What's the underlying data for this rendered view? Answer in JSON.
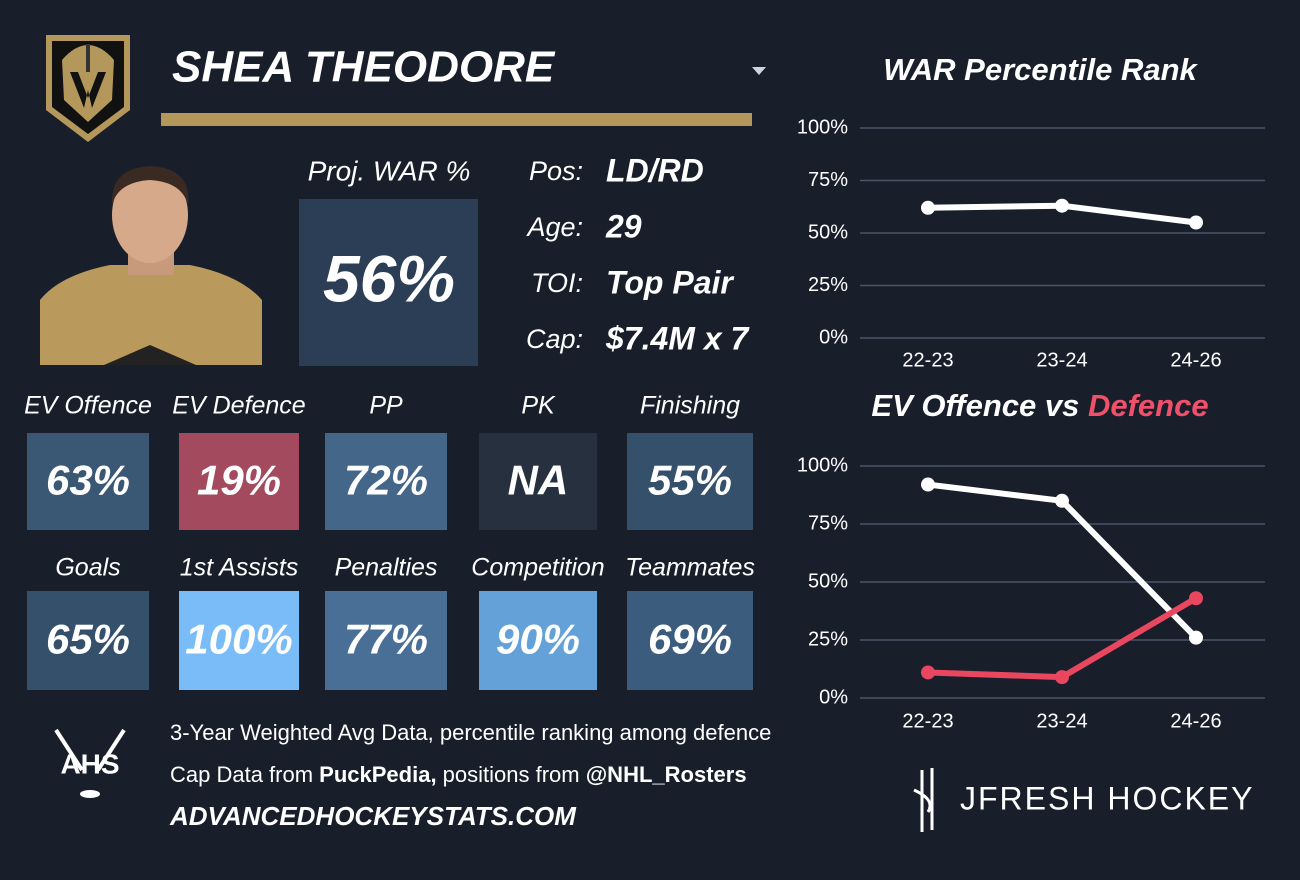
{
  "header": {
    "name": "SHEA THEODORE"
  },
  "profile": {
    "proj_label": "Proj. WAR %",
    "proj_value": "56%",
    "facts": [
      {
        "label": "Pos:",
        "value": "LD/RD"
      },
      {
        "label": "Age:",
        "value": "29"
      },
      {
        "label": "TOI:",
        "value": "Top Pair"
      },
      {
        "label": "Cap:",
        "value": "$7.4M x 7"
      }
    ]
  },
  "tiles": [
    [
      {
        "label": "EV Offence",
        "value": "63%",
        "color": "#3a5774"
      },
      {
        "label": "EV Defence",
        "value": "19%",
        "color": "#a34a5e"
      },
      {
        "label": "PP",
        "value": "72%",
        "color": "#436689"
      },
      {
        "label": "PK",
        "value": "NA",
        "color": "#26303f"
      },
      {
        "label": "Finishing",
        "value": "55%",
        "color": "#34506b"
      }
    ],
    [
      {
        "label": "Goals",
        "value": "65%",
        "color": "#34506b"
      },
      {
        "label": "1st Assists",
        "value": "100%",
        "color": "#79bcf7"
      },
      {
        "label": "Penalties",
        "value": "77%",
        "color": "#4a6f97"
      },
      {
        "label": "Competition",
        "value": "90%",
        "color": "#64a1d8"
      },
      {
        "label": "Teammates",
        "value": "69%",
        "color": "#3c5c7e"
      }
    ]
  ],
  "footer": {
    "logo": "AHS",
    "line1": "3-Year Weighted Avg Data, percentile ranking among defence",
    "line2": [
      "Cap Data from ",
      "PuckPedia,",
      " positions from ",
      "@NHL_Rosters"
    ],
    "site": "ADVANCEDHOCKEYSTATS.COM",
    "brand": "JFRESH HOCKEY"
  },
  "chart_data": [
    {
      "type": "line",
      "title": [
        "WAR Percentile Rank"
      ],
      "categories": [
        "22-23",
        "23-24",
        "24-26"
      ],
      "series": [
        {
          "color": "#ffffff",
          "values": [
            62,
            63,
            55
          ]
        }
      ],
      "ylim": [
        0,
        100
      ],
      "yticks": [
        {
          "value": 0,
          "label": "0%"
        },
        {
          "value": 25,
          "label": "25%"
        },
        {
          "value": 50,
          "label": "50%"
        },
        {
          "value": 75,
          "label": "75%"
        },
        {
          "value": 100,
          "label": "100%"
        }
      ],
      "grid": true
    },
    {
      "type": "line",
      "title": [
        "EV Offence vs",
        "Defence"
      ],
      "title_colors": [
        "#ffffff",
        "#f0506a"
      ],
      "categories": [
        "22-23",
        "23-24",
        "24-26"
      ],
      "series": [
        {
          "color": "#ffffff",
          "values": [
            92,
            85,
            26
          ]
        },
        {
          "color": "#e9475f",
          "values": [
            11,
            9,
            43
          ]
        }
      ],
      "ylim": [
        0,
        100
      ],
      "yticks": [
        {
          "value": 0,
          "label": "0%"
        },
        {
          "value": 25,
          "label": "25%"
        },
        {
          "value": 50,
          "label": "50%"
        },
        {
          "value": 75,
          "label": "75%"
        },
        {
          "value": 100,
          "label": "100%"
        }
      ],
      "grid": true
    }
  ]
}
